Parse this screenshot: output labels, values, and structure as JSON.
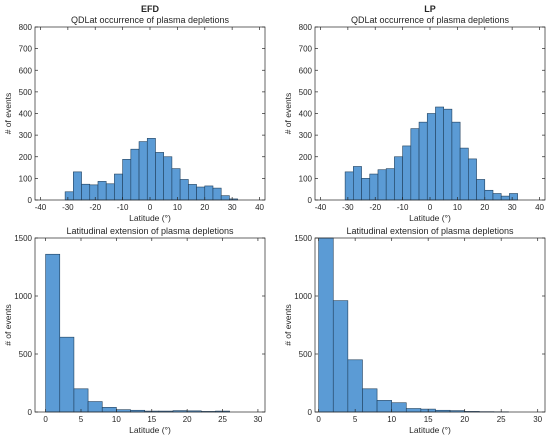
{
  "figure": {
    "bar_color": "#5b9bd5",
    "bar_edge_color": "#1f3f5c",
    "axis_color": "#262626"
  },
  "chart_data": [
    {
      "id": "efd-qdlat",
      "type": "bar",
      "title": "QDLat occurrence of plasma depletions",
      "suptitle": "EFD",
      "xlabel": "Latitude (°)",
      "ylabel": "# of events",
      "xlim": [
        -42,
        42
      ],
      "ylim": [
        0,
        800
      ],
      "xticks": [
        -40,
        -30,
        -20,
        -10,
        0,
        10,
        20,
        30,
        40
      ],
      "yticks": [
        0,
        100,
        200,
        300,
        400,
        500,
        600,
        700,
        800
      ],
      "grid": false,
      "legend": "none",
      "bin_width": 3,
      "bin_edges": [
        -31,
        -28,
        -25,
        -22,
        -19,
        -16,
        -13,
        -10,
        -7,
        -4,
        -1,
        2,
        5,
        8,
        11,
        14,
        17,
        20,
        23,
        26,
        29
      ],
      "values": [
        38,
        130,
        73,
        70,
        86,
        75,
        120,
        188,
        235,
        270,
        285,
        220,
        200,
        145,
        95,
        72,
        60,
        65,
        55,
        20,
        5
      ]
    },
    {
      "id": "lp-qdlat",
      "type": "bar",
      "title": "QDLat occurrence of plasma depletions",
      "suptitle": "LP",
      "xlabel": "Latitude (°)",
      "ylabel": "# of events",
      "xlim": [
        -42,
        42
      ],
      "ylim": [
        0,
        800
      ],
      "xticks": [
        -40,
        -30,
        -20,
        -10,
        0,
        10,
        20,
        30,
        40
      ],
      "yticks": [
        0,
        100,
        200,
        300,
        400,
        500,
        600,
        700,
        800
      ],
      "grid": false,
      "legend": "none",
      "bin_width": 3,
      "bin_edges": [
        -31,
        -28,
        -25,
        -22,
        -19,
        -16,
        -13,
        -10,
        -7,
        -4,
        -1,
        2,
        5,
        8,
        11,
        14,
        17,
        20,
        23,
        26,
        29
      ],
      "values": [
        130,
        155,
        100,
        120,
        140,
        145,
        200,
        250,
        330,
        360,
        400,
        430,
        420,
        360,
        240,
        190,
        95,
        45,
        30,
        18,
        30
      ]
    },
    {
      "id": "efd-extension",
      "type": "bar",
      "title": "Latitudinal extension of plasma depletions",
      "xlabel": "Latitude (°)",
      "ylabel": "# of events",
      "xlim": [
        -1.5,
        31
      ],
      "ylim": [
        0,
        1500
      ],
      "xticks": [
        0,
        5,
        10,
        15,
        20,
        25,
        30
      ],
      "yticks": [
        0,
        500,
        1000,
        1500
      ],
      "grid": false,
      "legend": "none",
      "bin_width": 2,
      "bin_edges": [
        0,
        2,
        4,
        6,
        8,
        10,
        12,
        14,
        16,
        18,
        20,
        22,
        24,
        26
      ],
      "values": [
        1360,
        645,
        200,
        90,
        40,
        20,
        15,
        8,
        8,
        12,
        10,
        5,
        8
      ]
    },
    {
      "id": "lp-extension",
      "type": "bar",
      "title": "Latitudinal extension of plasma depletions",
      "xlabel": "Latitude (°)",
      "ylabel": "# of events",
      "xlim": [
        -0.5,
        31
      ],
      "ylim": [
        0,
        1500
      ],
      "xticks": [
        0,
        5,
        10,
        15,
        20,
        25,
        30
      ],
      "yticks": [
        0,
        500,
        1000,
        1500
      ],
      "grid": false,
      "legend": "none",
      "bin_width": 2,
      "bin_edges": [
        0,
        2,
        4,
        6,
        8,
        10,
        12,
        14,
        16,
        18,
        20,
        22,
        24,
        26
      ],
      "values": [
        1500,
        960,
        450,
        200,
        100,
        80,
        30,
        25,
        15,
        12,
        5,
        3,
        2
      ]
    }
  ]
}
